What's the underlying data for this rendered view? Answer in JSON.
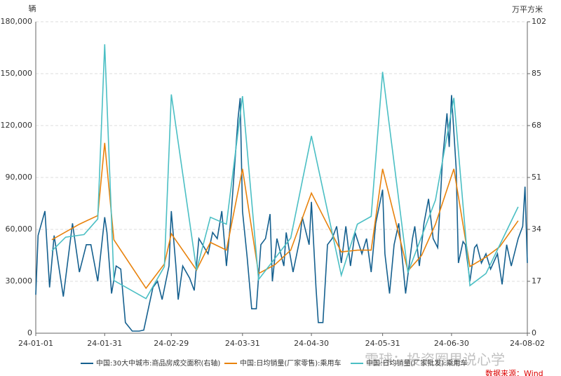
{
  "chart_data": {
    "type": "line",
    "y_unit": "辆",
    "y2_unit": "万平方米",
    "xlim": [
      "24-01-01",
      "24-08-02"
    ],
    "xticks": [
      "24-01-01",
      "24-01-31",
      "24-02-29",
      "24-03-31",
      "24-04-30",
      "24-05-31",
      "24-06-30",
      "24-08-02"
    ],
    "ylim": [
      0,
      180000
    ],
    "yticks": [
      0,
      {
        "value": 30000,
        "label": "30,000"
      },
      {
        "value": 60000,
        "label": "60,000"
      },
      {
        "value": 90000,
        "label": "90,000"
      },
      {
        "value": 120000,
        "label": "120,000"
      },
      {
        "value": 150000,
        "label": "150,000"
      },
      {
        "value": 180000,
        "label": "180,000"
      }
    ],
    "y2lim": [
      0,
      102
    ],
    "y2ticks": [
      0,
      17,
      34,
      51,
      68,
      85,
      102
    ],
    "grid": true,
    "legend": "bottom",
    "series": [
      {
        "name": "中国:30大中城市:商品房成交面积(右轴)",
        "color": "#15608f",
        "axis": "y2",
        "x": [
          "24-01-01",
          "24-01-02",
          "24-01-05",
          "24-01-07",
          "24-01-09",
          "24-01-13",
          "24-01-17",
          "24-01-20",
          "24-01-23",
          "24-01-25",
          "24-01-28",
          "24-01-31",
          "24-02-01",
          "24-02-03",
          "24-02-05",
          "24-02-07",
          "24-02-09",
          "24-02-12",
          "24-02-15",
          "24-02-17",
          "24-02-19",
          "24-02-21",
          "24-02-23",
          "24-02-25",
          "24-02-28",
          "24-02-29",
          "24-03-02",
          "24-03-03",
          "24-03-05",
          "24-03-08",
          "24-03-10",
          "24-03-12",
          "24-03-16",
          "24-03-18",
          "24-03-20",
          "24-03-22",
          "24-03-24",
          "24-03-26",
          "24-03-29",
          "24-03-30",
          "24-03-31",
          "24-04-02",
          "24-04-04",
          "24-04-06",
          "24-04-08",
          "24-04-10",
          "24-04-12",
          "24-04-13",
          "24-04-15",
          "24-04-18",
          "24-04-19",
          "24-04-22",
          "24-04-25",
          "24-04-26",
          "24-04-29",
          "24-04-30",
          "24-05-02",
          "24-05-03",
          "24-05-05",
          "24-05-07",
          "24-05-09",
          "24-05-11",
          "24-05-13",
          "24-05-15",
          "24-05-17",
          "24-05-19",
          "24-05-22",
          "24-05-24",
          "24-05-26",
          "24-05-28",
          "24-05-31",
          "24-06-01",
          "24-06-03",
          "24-06-05",
          "24-06-07",
          "24-06-08",
          "24-06-10",
          "24-06-13",
          "24-06-14",
          "24-06-16",
          "24-06-18",
          "24-06-20",
          "24-06-22",
          "24-06-24",
          "24-06-26",
          "24-06-28",
          "24-06-29",
          "24-06-30",
          "24-07-02",
          "24-07-03",
          "24-07-05",
          "24-07-06",
          "24-07-08",
          "24-07-10",
          "24-07-11",
          "24-07-13",
          "24-07-15",
          "24-07-17",
          "24-07-20",
          "24-07-22",
          "24-07-24",
          "24-07-26",
          "24-07-29",
          "24-07-31",
          "24-08-01",
          "24-08-02"
        ],
        "values": [
          12.6,
          32,
          40,
          15,
          32,
          12,
          36,
          20,
          29,
          29,
          17,
          38,
          33,
          13,
          22,
          21,
          3.5,
          0.7,
          0.7,
          1,
          8,
          15,
          17,
          11,
          22,
          40,
          22,
          11,
          22,
          18,
          14,
          31,
          26,
          33,
          31,
          40,
          22,
          38,
          70,
          77,
          40,
          25,
          8,
          8,
          29,
          31,
          39,
          17,
          31,
          22,
          33,
          20,
          31,
          38,
          29,
          43,
          15,
          3.5,
          3.5,
          29,
          31,
          35,
          23,
          35,
          22,
          33,
          26,
          31,
          20,
          36,
          47,
          26,
          13,
          29,
          36,
          29,
          13,
          31,
          35,
          22,
          36,
          44,
          31,
          28,
          56,
          72,
          61,
          78,
          54,
          23,
          30,
          29,
          17,
          28,
          29,
          23,
          26,
          21,
          26,
          16,
          29,
          22,
          31,
          35,
          48,
          23
        ]
      },
      {
        "name": "中国:日均销量(厂家零售):乘用车",
        "color": "#e8820c",
        "x": [
          "24-01-08",
          "24-01-20",
          "24-01-28",
          "24-01-31",
          "24-02-04",
          "24-02-18",
          "24-02-26",
          "24-02-29",
          "24-03-11",
          "24-03-17",
          "24-03-24",
          "24-03-31",
          "24-04-07",
          "24-04-14",
          "24-04-21",
          "24-04-30",
          "24-05-13",
          "24-05-20",
          "24-05-26",
          "24-05-31",
          "24-06-11",
          "24-06-17",
          "24-06-23",
          "24-07-01",
          "24-07-08",
          "24-07-15",
          "24-07-21",
          "24-07-29"
        ],
        "values": [
          54000,
          63000,
          68000,
          110000,
          54000,
          26000,
          40000,
          57500,
          36500,
          52500,
          48000,
          95000,
          34500,
          39500,
          48000,
          81000,
          47000,
          48000,
          48000,
          95000,
          36000,
          45000,
          63000,
          95000,
          38500,
          44000,
          50000,
          65000
        ]
      },
      {
        "name": "中国:日均销量(厂家批发):乘用车",
        "color": "#4bbfc4",
        "x": [
          "24-01-08",
          "24-01-14",
          "24-01-22",
          "24-01-28",
          "24-01-31",
          "24-02-04",
          "24-02-18",
          "24-02-26",
          "24-02-29",
          "24-03-11",
          "24-03-17",
          "24-03-24",
          "24-03-31",
          "24-04-07",
          "24-04-21",
          "24-04-30",
          "24-05-13",
          "24-05-20",
          "24-05-26",
          "24-05-31",
          "24-06-11",
          "24-06-23",
          "24-07-01",
          "24-07-08",
          "24-07-15",
          "24-07-29"
        ],
        "values": [
          47500,
          55500,
          57000,
          66000,
          167000,
          30500,
          20000,
          38500,
          138000,
          36500,
          67000,
          63000,
          137000,
          31000,
          55000,
          114000,
          33500,
          63000,
          67500,
          151000,
          35000,
          77000,
          136000,
          27500,
          34500,
          73000
        ]
      }
    ],
    "watermark": "雪球：投资圈里说心学",
    "source": "数据来源：Wind"
  }
}
